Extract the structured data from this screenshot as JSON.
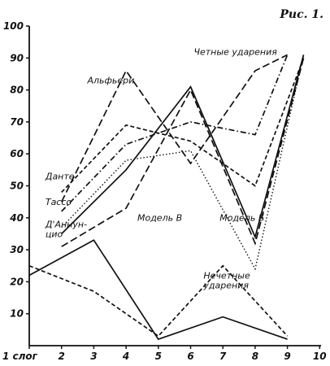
{
  "figure_label": "Рис. 1.",
  "chart_data": {
    "type": "line",
    "title": "",
    "xlabel": "",
    "ylabel": "",
    "xlim": [
      1,
      10
    ],
    "ylim": [
      0,
      100
    ],
    "grid": false,
    "legend": "none",
    "x_ticks": [
      "1 слог",
      "2",
      "3",
      "4",
      "5",
      "6",
      "7",
      "8",
      "9",
      "10"
    ],
    "y_ticks": [
      "10",
      "20",
      "30",
      "40",
      "50",
      "60",
      "70",
      "80",
      "90",
      "100"
    ],
    "annotations": [
      {
        "lines": [
          "Четные ударения"
        ],
        "x": 6.1,
        "y": 91
      },
      {
        "lines": [
          "Альфьери"
        ],
        "x": 2.8,
        "y": 82
      },
      {
        "lines": [
          "Данте"
        ],
        "x": 1.5,
        "y": 52
      },
      {
        "lines": [
          "Тассо"
        ],
        "x": 1.5,
        "y": 44
      },
      {
        "lines": [
          "Д'Аннун-",
          "цио"
        ],
        "x": 1.5,
        "y": 37
      },
      {
        "lines": [
          "Модель В"
        ],
        "x": 4.35,
        "y": 39
      },
      {
        "lines": [
          "Модель Б"
        ],
        "x": 6.9,
        "y": 39
      },
      {
        "lines": [
          "Нечетные",
          "ударения"
        ],
        "x": 6.4,
        "y": 21
      }
    ],
    "series": [
      {
        "style": "dash-long",
        "points": [
          [
            2,
            45
          ],
          [
            4,
            86
          ],
          [
            6,
            57
          ],
          [
            8,
            86
          ],
          [
            9,
            91
          ]
        ]
      },
      {
        "style": "dash",
        "points": [
          [
            2,
            48
          ],
          [
            4,
            69
          ],
          [
            6,
            64
          ],
          [
            8,
            50
          ],
          [
            9.5,
            90
          ]
        ]
      },
      {
        "style": "dash-long",
        "points": [
          [
            2,
            31
          ],
          [
            4,
            43
          ],
          [
            6,
            80
          ],
          [
            8,
            32
          ],
          [
            9.5,
            90
          ]
        ]
      },
      {
        "style": "dashdot",
        "points": [
          [
            2,
            42
          ],
          [
            4,
            63
          ],
          [
            6,
            70
          ],
          [
            8,
            66
          ],
          [
            9,
            91
          ]
        ]
      },
      {
        "style": "dot",
        "points": [
          [
            2,
            37
          ],
          [
            4,
            58
          ],
          [
            6,
            61
          ],
          [
            8,
            24
          ],
          [
            9.5,
            91
          ]
        ]
      },
      {
        "style": "solid",
        "points": [
          [
            2,
            35
          ],
          [
            4,
            55
          ],
          [
            6,
            81
          ],
          [
            8,
            34
          ],
          [
            9.5,
            91
          ]
        ]
      },
      {
        "style": "solid",
        "points": [
          [
            1,
            22
          ],
          [
            3,
            33
          ],
          [
            5,
            2
          ],
          [
            7,
            9
          ],
          [
            9,
            2
          ]
        ]
      },
      {
        "style": "dash",
        "points": [
          [
            1,
            25
          ],
          [
            3,
            17
          ],
          [
            5,
            3
          ],
          [
            7,
            25
          ],
          [
            9,
            3
          ]
        ]
      }
    ]
  }
}
